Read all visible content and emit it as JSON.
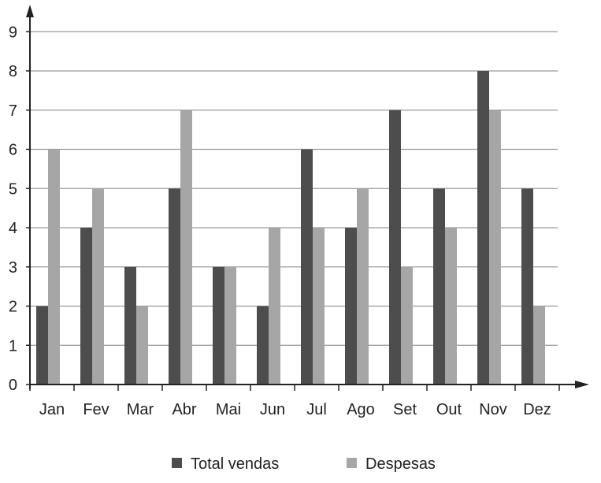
{
  "chart_data": {
    "type": "bar",
    "categories": [
      "Jan",
      "Fev",
      "Mar",
      "Abr",
      "Mai",
      "Jun",
      "Jul",
      "Ago",
      "Set",
      "Out",
      "Nov",
      "Dez"
    ],
    "series": [
      {
        "name": "Total vendas",
        "values": [
          2,
          4,
          3,
          5,
          3,
          2,
          6,
          4,
          7,
          5,
          8,
          5
        ],
        "color": "#4d4d4d"
      },
      {
        "name": "Despesas",
        "values": [
          6,
          5,
          2,
          7,
          3,
          4,
          4,
          5,
          3,
          4,
          7,
          2
        ],
        "color": "#a6a6a6"
      }
    ],
    "yticks": [
      "0",
      "1",
      "2",
      "3",
      "4",
      "5",
      "6",
      "7",
      "8",
      "9"
    ],
    "ylim": [
      0,
      9
    ],
    "grid": true,
    "legend_position": "bottom",
    "gridline_color": "#9a9a9a",
    "axis_color": "#222222"
  }
}
